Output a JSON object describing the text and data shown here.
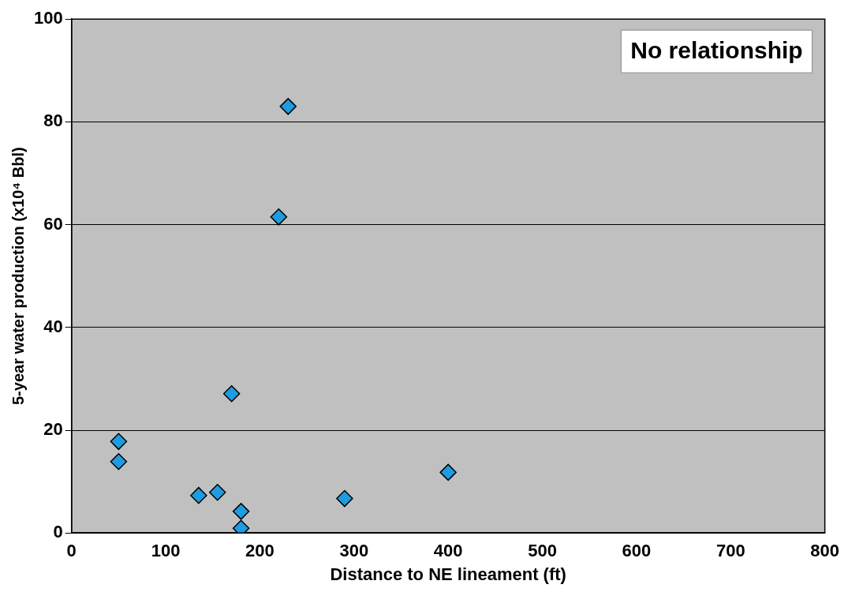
{
  "chart_data": {
    "type": "scatter",
    "xlabel": "Distance to NE lineament (ft)",
    "ylabel": "5-year water production (x10⁴ Bbl)",
    "x": [
      50,
      50,
      135,
      155,
      170,
      180,
      180,
      220,
      230,
      290,
      400
    ],
    "series": [
      {
        "color": "#1f9ce0",
        "values": [
          17.8,
          13.9,
          7.3,
          7.9,
          27.1,
          4.2,
          0.9,
          61.5,
          83.0,
          6.7,
          11.8
        ]
      }
    ],
    "xlim": [
      0,
      800
    ],
    "xticks": [
      0,
      100,
      200,
      300,
      400,
      500,
      600,
      700,
      800
    ],
    "ylim": [
      0,
      100
    ],
    "yticks": [
      0,
      20,
      40,
      60,
      80,
      100
    ],
    "grid": "y",
    "legend": false,
    "marker": "diamond",
    "annotations": [
      "No relationship"
    ]
  }
}
